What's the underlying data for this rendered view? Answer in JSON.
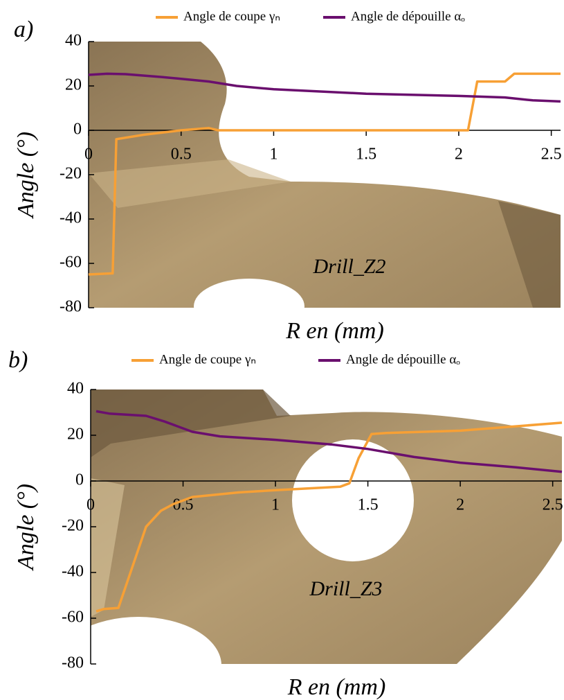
{
  "chart_data": [
    {
      "type": "line",
      "label": "a)",
      "annotation": "Drill_Z2",
      "xlabel": "R en (mm)",
      "ylabel": "Angle (°)",
      "xlim": [
        0,
        2.55
      ],
      "ylim": [
        -80,
        40
      ],
      "xticks": [
        0,
        0.5,
        1,
        1.5,
        2,
        2.5
      ],
      "yticks": [
        -80,
        -60,
        -40,
        -20,
        0,
        20,
        40
      ],
      "series": [
        {
          "name": "Angle de coupe γₙ",
          "color": "#f7a035",
          "x": [
            0,
            0.13,
            0.15,
            0.3,
            0.5,
            0.65,
            0.7,
            2.05,
            2.1,
            2.25,
            2.3,
            2.55
          ],
          "values": [
            -65,
            -64.5,
            -4,
            -2,
            0,
            1,
            0,
            0,
            22,
            22,
            25.5,
            25.5
          ]
        },
        {
          "name": "Angle de dépouille αₒ",
          "color": "#6a0f6e",
          "x": [
            0,
            0.1,
            0.2,
            0.4,
            0.65,
            0.8,
            1.0,
            1.5,
            2.0,
            2.25,
            2.4,
            2.55
          ],
          "values": [
            25,
            25.5,
            25.3,
            24,
            22,
            20,
            18.5,
            16.5,
            15.5,
            14.8,
            13.5,
            13
          ]
        }
      ]
    },
    {
      "type": "line",
      "label": "b)",
      "annotation": "Drill_Z3",
      "xlabel": "R en (mm)",
      "ylabel": "Angle (°)",
      "xlim": [
        0,
        2.55
      ],
      "ylim": [
        -80,
        40
      ],
      "xticks": [
        0,
        0.5,
        1,
        1.5,
        2,
        2.5
      ],
      "yticks": [
        -80,
        -60,
        -40,
        -20,
        0,
        20,
        40
      ],
      "series": [
        {
          "name": "Angle de coupe γₙ",
          "color": "#f7a035",
          "x": [
            0.03,
            0.07,
            0.15,
            0.3,
            0.38,
            0.45,
            0.55,
            0.8,
            1.0,
            1.35,
            1.4,
            1.45,
            1.52,
            1.6,
            2.0,
            2.55
          ],
          "values": [
            -57,
            -56,
            -55.5,
            -20,
            -13,
            -10,
            -7,
            -5,
            -4,
            -2.5,
            -1,
            10,
            20.5,
            21,
            22,
            25.5
          ]
        },
        {
          "name": "Angle de dépouille αₒ",
          "color": "#6a0f6e",
          "x": [
            0.03,
            0.1,
            0.3,
            0.4,
            0.55,
            0.7,
            1.0,
            1.3,
            1.5,
            1.75,
            2.0,
            2.3,
            2.55
          ],
          "values": [
            30.5,
            29.5,
            28.5,
            26,
            21.5,
            19.5,
            18,
            16,
            14,
            10.5,
            8,
            6,
            4
          ]
        }
      ]
    }
  ]
}
